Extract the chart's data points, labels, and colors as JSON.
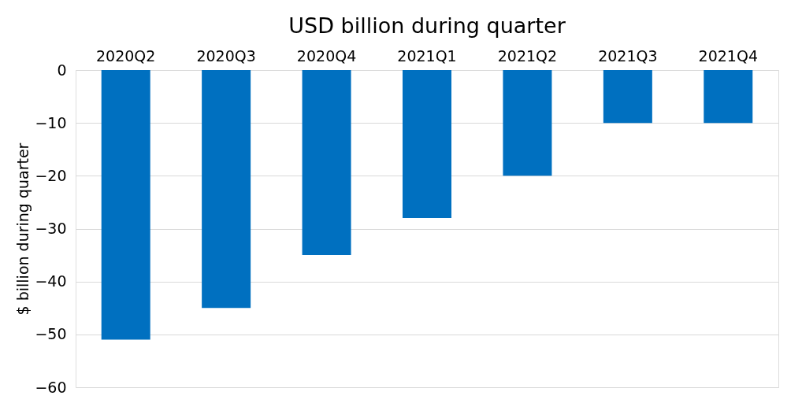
{
  "chart_data": {
    "type": "bar",
    "title": "USD billion during quarter",
    "ylabel": "$ billion during quarter",
    "categories": [
      "2020Q2",
      "2020Q3",
      "2020Q4",
      "2021Q1",
      "2021Q2",
      "2021Q3",
      "2021Q4"
    ],
    "values": [
      -51,
      -45,
      -35,
      -28,
      -20,
      -10,
      -10
    ],
    "color": "#0070c0",
    "ylim": [
      -60,
      0
    ],
    "yticks": [
      0,
      -10,
      -20,
      -30,
      -40,
      -50,
      -60
    ],
    "grid": "y"
  }
}
